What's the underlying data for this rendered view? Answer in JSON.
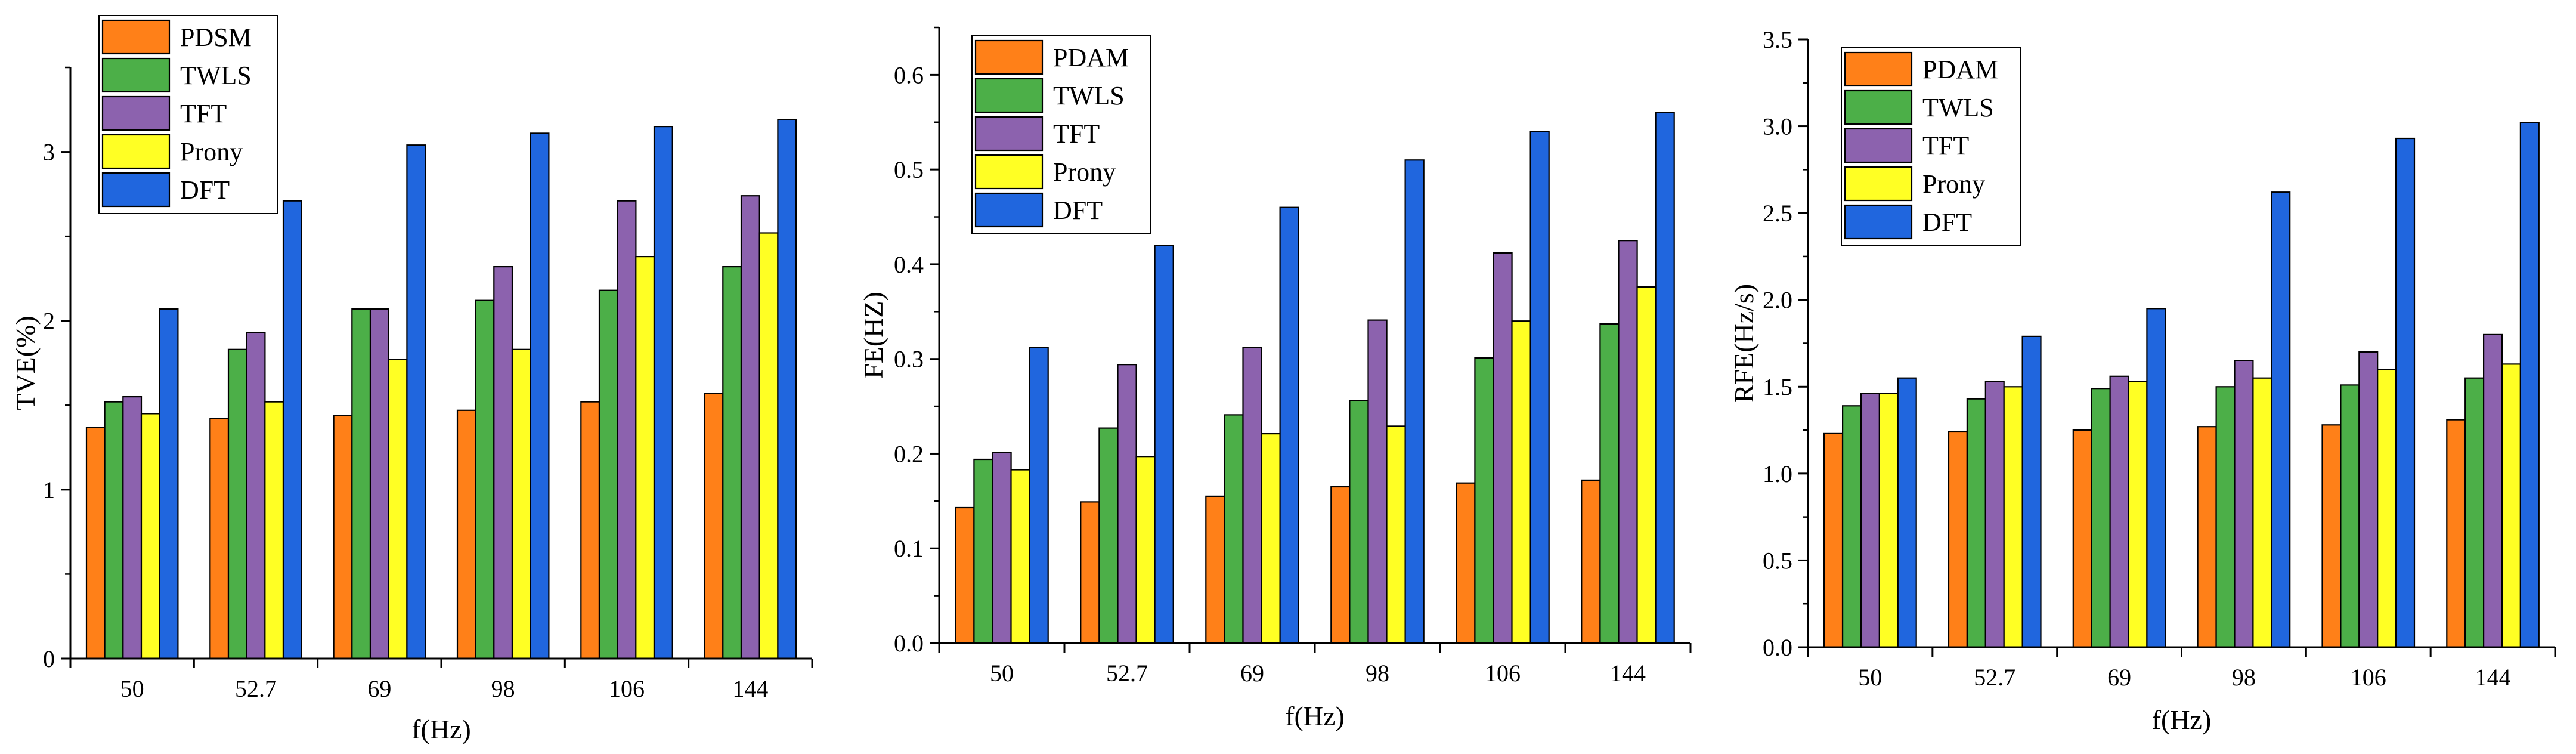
{
  "chart_data": [
    {
      "type": "bar",
      "categories": [
        "50",
        "52.7",
        "69",
        "98",
        "106",
        "144"
      ],
      "xlabel": "f(Hz)",
      "ylabel": "TVE(%)",
      "ylim": [
        0,
        3.5
      ],
      "yticks": [
        "0",
        "1",
        "2",
        "3"
      ],
      "legend_position": "top-left",
      "series": [
        {
          "name": "PDSM",
          "color": "#FF8018",
          "values": [
            1.37,
            1.42,
            1.44,
            1.47,
            1.52,
            1.57
          ]
        },
        {
          "name": "TWLS",
          "color": "#4CAF48",
          "values": [
            1.52,
            1.83,
            2.07,
            2.12,
            2.18,
            2.32
          ]
        },
        {
          "name": "TFT",
          "color": "#8C62AE",
          "values": [
            1.55,
            1.93,
            2.07,
            2.32,
            2.71,
            2.74
          ]
        },
        {
          "name": "Prony",
          "color": "#FFFF24",
          "values": [
            1.45,
            1.52,
            1.77,
            1.83,
            2.38,
            2.52
          ]
        },
        {
          "name": "DFT",
          "color": "#2066DE",
          "values": [
            2.07,
            2.71,
            3.04,
            3.11,
            3.15,
            3.19
          ]
        }
      ]
    },
    {
      "type": "bar",
      "categories": [
        "50",
        "52.7",
        "69",
        "98",
        "106",
        "144"
      ],
      "xlabel": "f(Hz)",
      "ylabel": "FE(HZ)",
      "ylim": [
        0,
        0.65
      ],
      "yticks": [
        "0.0",
        "0.1",
        "0.2",
        "0.3",
        "0.4",
        "0.5",
        "0.6"
      ],
      "legend_position": "top-left",
      "series": [
        {
          "name": "PDAM",
          "color": "#FF8018",
          "values": [
            0.143,
            0.149,
            0.155,
            0.165,
            0.169,
            0.172
          ]
        },
        {
          "name": "TWLS",
          "color": "#4CAF48",
          "values": [
            0.194,
            0.227,
            0.241,
            0.256,
            0.301,
            0.337
          ]
        },
        {
          "name": "TFT",
          "color": "#8C62AE",
          "values": [
            0.201,
            0.294,
            0.312,
            0.341,
            0.412,
            0.425
          ]
        },
        {
          "name": "Prony",
          "color": "#FFFF24",
          "values": [
            0.183,
            0.197,
            0.221,
            0.229,
            0.34,
            0.376
          ]
        },
        {
          "name": "DFT",
          "color": "#2066DE",
          "values": [
            0.312,
            0.42,
            0.46,
            0.51,
            0.54,
            0.56
          ]
        }
      ]
    },
    {
      "type": "bar",
      "categories": [
        "50",
        "52.7",
        "69",
        "98",
        "106",
        "144"
      ],
      "xlabel": "f(Hz)",
      "ylabel": "RFE(Hz/s)",
      "ylim": [
        0,
        3.5
      ],
      "yticks": [
        "0.0",
        "0.5",
        "1.0",
        "1.5",
        "2.0",
        "2.5",
        "3.0",
        "3.5"
      ],
      "legend_position": "top-left",
      "series": [
        {
          "name": "PDAM",
          "color": "#FF8018",
          "values": [
            1.23,
            1.24,
            1.25,
            1.27,
            1.28,
            1.31
          ]
        },
        {
          "name": "TWLS",
          "color": "#4CAF48",
          "values": [
            1.39,
            1.43,
            1.49,
            1.5,
            1.51,
            1.55
          ]
        },
        {
          "name": "TFT",
          "color": "#8C62AE",
          "values": [
            1.46,
            1.53,
            1.56,
            1.65,
            1.7,
            1.8
          ]
        },
        {
          "name": "Prony",
          "color": "#FFFF24",
          "values": [
            1.46,
            1.5,
            1.53,
            1.55,
            1.6,
            1.63
          ]
        },
        {
          "name": "DFT",
          "color": "#2066DE",
          "values": [
            1.55,
            1.79,
            1.95,
            2.62,
            2.93,
            3.02
          ]
        }
      ]
    }
  ]
}
